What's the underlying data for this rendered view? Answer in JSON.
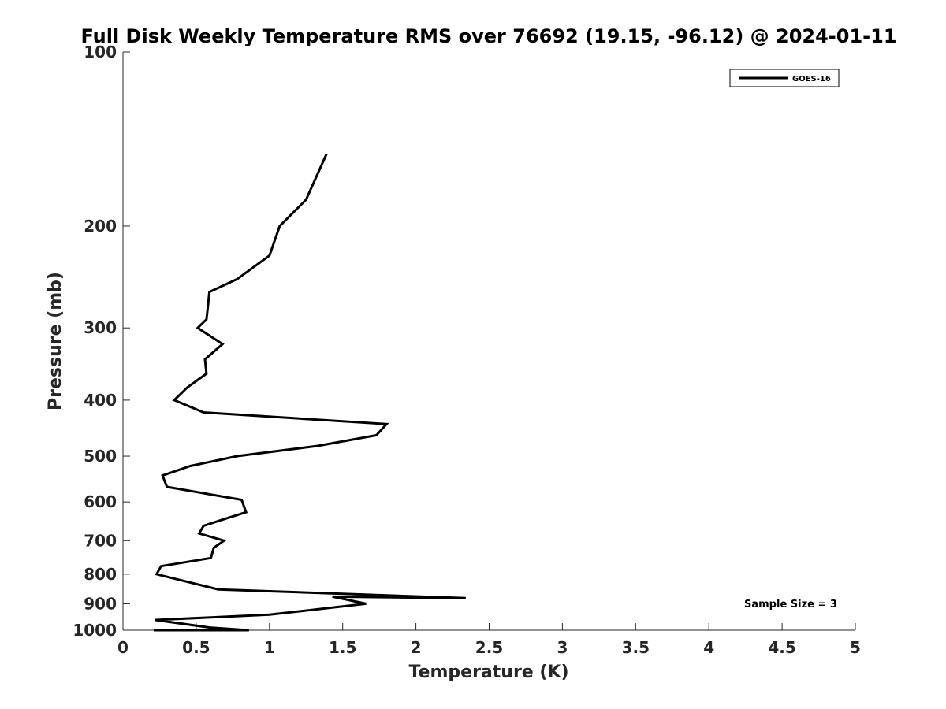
{
  "chart_data": {
    "type": "line",
    "title": "Full Disk Weekly Temperature RMS over 76692 (19.15, -96.12) @ 2024-01-11",
    "xlabel": "Temperature (K)",
    "ylabel": "Pressure (mb)",
    "xlim": [
      0,
      5
    ],
    "ylim": [
      1000,
      100
    ],
    "y_scale": "log",
    "y_reversed": true,
    "x_ticks": [
      0,
      0.5,
      1,
      1.5,
      2,
      2.5,
      3,
      3.5,
      4,
      4.5,
      5
    ],
    "x_tick_labels": [
      "0",
      "0.5",
      "1",
      "1.5",
      "2",
      "2.5",
      "3",
      "3.5",
      "4",
      "4.5",
      "5"
    ],
    "y_ticks": [
      100,
      200,
      300,
      400,
      500,
      600,
      700,
      800,
      900,
      1000
    ],
    "y_tick_labels": [
      "100",
      "200",
      "300",
      "400",
      "500",
      "600",
      "700",
      "800",
      "900",
      "1000"
    ],
    "grid": false,
    "legend_position": "top-right",
    "annotation": "Sample Size = 3",
    "series": [
      {
        "name": "GOES-16",
        "color": "#000000",
        "x": [
          1.39,
          1.25,
          1.07,
          1.0,
          0.78,
          0.59,
          0.58,
          0.57,
          0.51,
          0.68,
          0.56,
          0.57,
          0.44,
          0.35,
          0.55,
          1.8,
          1.73,
          1.33,
          0.78,
          0.46,
          0.27,
          0.3,
          0.81,
          0.84,
          0.67,
          0.55,
          0.52,
          0.69,
          0.62,
          0.6,
          0.26,
          0.23,
          0.65,
          2.34,
          1.43,
          1.66,
          1.0,
          0.22,
          0.6,
          0.86,
          0.21
        ],
        "y": [
          150,
          180,
          200,
          225,
          247,
          260,
          275,
          290,
          300,
          320,
          340,
          360,
          380,
          400,
          420,
          440,
          460,
          480,
          500,
          520,
          540,
          565,
          595,
          625,
          645,
          660,
          680,
          700,
          720,
          750,
          775,
          800,
          850,
          880,
          875,
          900,
          940,
          960,
          990,
          1000,
          1000
        ]
      }
    ]
  }
}
